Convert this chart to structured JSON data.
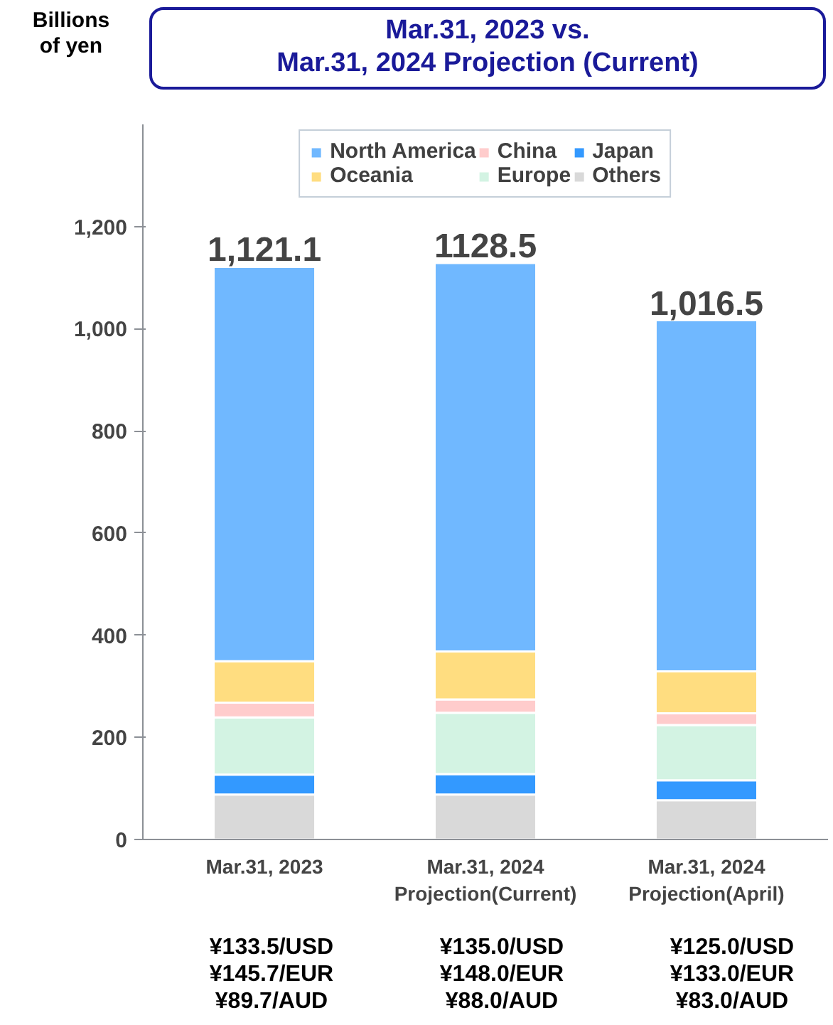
{
  "chart_data": {
    "type": "bar",
    "stacked": true,
    "title": "Mar.31, 2023 vs.\nMar.31, 2024 Projection (Current)",
    "ylabel": "Billions\nof yen",
    "categories": [
      "Mar.31, 2023",
      "Mar.31, 2024\nProjection(Current)",
      "Mar.31, 2024\nProjection(April)"
    ],
    "series": [
      {
        "name": "Others",
        "color": "#d9d9d9",
        "values": [
          88,
          88,
          77
        ]
      },
      {
        "name": "Japan",
        "color": "#3399ff",
        "values": [
          39,
          40,
          39
        ]
      },
      {
        "name": "Europe",
        "color": "#d3f3e3",
        "values": [
          112,
          120,
          108
        ]
      },
      {
        "name": "China",
        "color": "#ffcccc",
        "values": [
          29,
          26,
          23
        ]
      },
      {
        "name": "Oceania",
        "color": "#ffdd80",
        "values": [
          81,
          94,
          82
        ]
      },
      {
        "name": "North America",
        "color": "#70b8ff",
        "values": [
          772.1,
          760.5,
          687.5
        ]
      }
    ],
    "totals": [
      "1,121.1",
      "1128.5",
      "1,016.5"
    ],
    "ylim": [
      0,
      1400
    ],
    "yticks": [
      0,
      {
        "value": 200,
        "label": "200"
      },
      {
        "value": 400,
        "label": "400"
      },
      {
        "value": 600,
        "label": "600"
      },
      {
        "value": 800,
        "label": "800"
      },
      {
        "value": 1000,
        "label": "1,000"
      },
      {
        "value": 1200,
        "label": "1,200"
      }
    ],
    "grid": false,
    "legend": "top",
    "annotations": [
      "¥133.5/USD\n¥145.7/EUR\n¥89.7/AUD",
      "¥135.0/USD\n¥148.0/EUR\n¥88.0/AUD",
      "¥125.0/USD\n¥133.0/EUR\n¥83.0/AUD"
    ]
  }
}
